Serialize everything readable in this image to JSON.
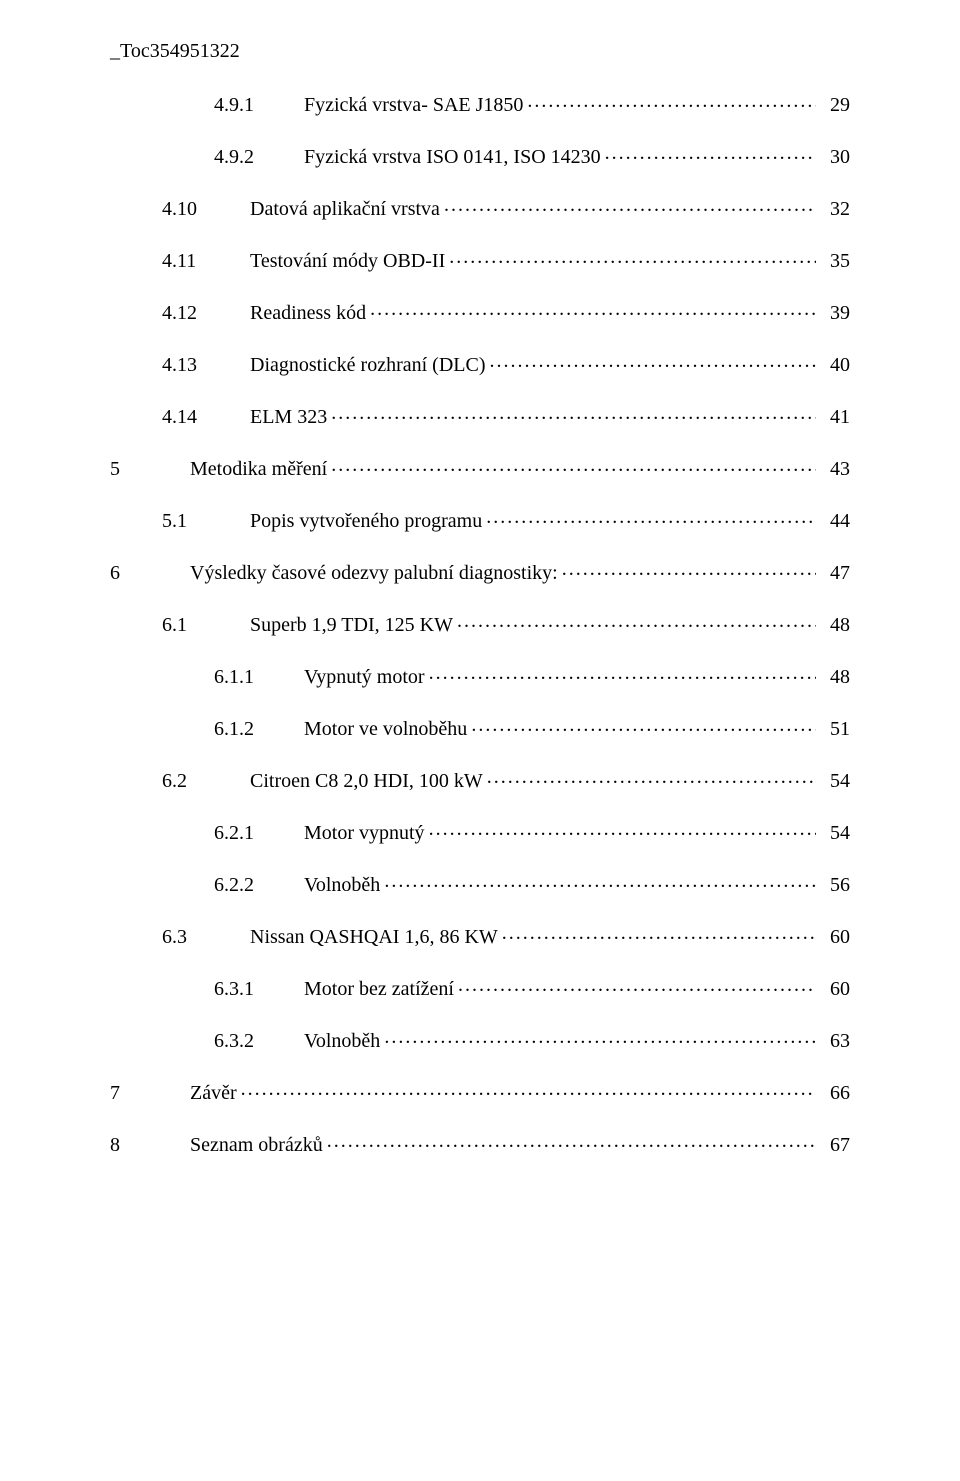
{
  "anchor": "_Toc354951322",
  "entries": [
    {
      "indent": 2,
      "num": "4.9.1",
      "title": "Fyzická vrstva- SAE J1850",
      "page": "29"
    },
    {
      "indent": 2,
      "num": "4.9.2",
      "title": "Fyzická vrstva ISO 0141, ISO 14230",
      "page": "30"
    },
    {
      "indent": 1,
      "num": "4.10",
      "title": "Datová aplikační vrstva",
      "page": "32"
    },
    {
      "indent": 1,
      "num": "4.11",
      "title": "Testování módy OBD-II",
      "page": "35"
    },
    {
      "indent": 1,
      "num": "4.12",
      "title": "Readiness kód",
      "page": "39"
    },
    {
      "indent": 1,
      "num": "4.13",
      "title": "Diagnostické rozhraní (DLC)",
      "page": "40"
    },
    {
      "indent": 1,
      "num": "4.14",
      "title": "ELM 323",
      "page": "41"
    },
    {
      "indent": 0,
      "num": "5",
      "title": "Metodika měření",
      "page": "43"
    },
    {
      "indent": 1,
      "num": "5.1",
      "title": "Popis vytvořeného programu",
      "page": "44"
    },
    {
      "indent": 0,
      "num": "6",
      "title": "Výsledky časové odezvy palubní diagnostiky:",
      "page": "47"
    },
    {
      "indent": 1,
      "num": "6.1",
      "title": "Superb 1,9 TDI, 125 KW",
      "page": "48"
    },
    {
      "indent": 2,
      "num": "6.1.1",
      "title": "Vypnutý motor",
      "page": "48"
    },
    {
      "indent": 2,
      "num": "6.1.2",
      "title": "Motor ve volnoběhu",
      "page": "51"
    },
    {
      "indent": 1,
      "num": "6.2",
      "title": "Citroen C8 2,0 HDI, 100 kW",
      "page": "54"
    },
    {
      "indent": 2,
      "num": "6.2.1",
      "title": "Motor vypnutý",
      "page": "54"
    },
    {
      "indent": 2,
      "num": "6.2.2",
      "title": "Volnoběh",
      "page": "56"
    },
    {
      "indent": 1,
      "num": "6.3",
      "title": "Nissan QASHQAI 1,6, 86 KW",
      "page": "60"
    },
    {
      "indent": 2,
      "num": "6.3.1",
      "title": "Motor bez zatížení",
      "page": "60"
    },
    {
      "indent": 2,
      "num": "6.3.2",
      "title": "Volnoběh",
      "page": "63"
    },
    {
      "indent": 0,
      "num": "7",
      "title": "Závěr",
      "page": "66"
    },
    {
      "indent": 0,
      "num": "8",
      "title": "Seznam obrázků",
      "page": "67"
    }
  ]
}
